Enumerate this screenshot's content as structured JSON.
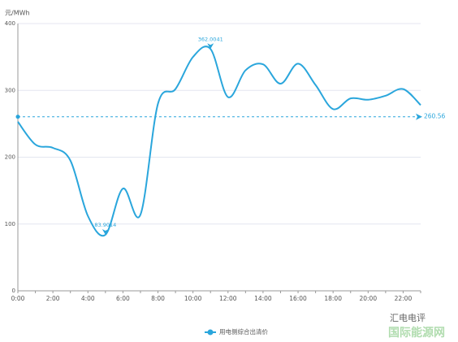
{
  "chart_data": {
    "type": "line",
    "y_label": "元/MWh",
    "categories": [
      "0:00",
      null,
      "2:00",
      null,
      "4:00",
      null,
      "6:00",
      null,
      "8:00",
      null,
      "10:00",
      null,
      "12:00",
      null,
      "14:00",
      null,
      "16:00",
      null,
      "18:00",
      null,
      "20:00",
      null,
      "22:00",
      null
    ],
    "series": [
      {
        "name": "用电侧综合出清价",
        "color": "#2aa6dc",
        "values": [
          253,
          219,
          214,
          195,
          112,
          83.9014,
          153,
          114,
          280,
          302,
          350,
          362.0041,
          290,
          330,
          339,
          310,
          340,
          308,
          272,
          288,
          286,
          292,
          302,
          278
        ]
      }
    ],
    "ylim": [
      0,
      400
    ],
    "yticks": [
      0,
      100,
      200,
      300,
      400
    ],
    "grid": true,
    "smooth": true,
    "average": 260.56,
    "watermark": [
      "汇电电评",
      "国际能源网"
    ]
  }
}
